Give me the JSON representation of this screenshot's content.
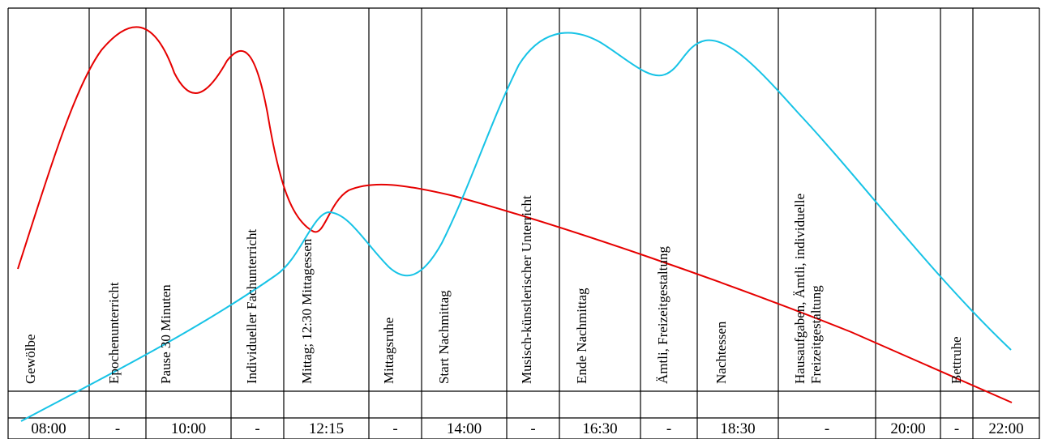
{
  "activities": [
    "Gewölbe",
    "Epochenunterricht",
    "Pause 30 Minuten",
    "Individueller Fachunterricht",
    "Mittag; 12:30 Mittagessen",
    "Mittagsruhe",
    "Start Nachmittag",
    "Musisch-künstlerischer Unterricht",
    "Ende Nachmittag",
    "Ämtli, Freizeitgestaltung",
    "Nachtessen",
    "Hausaufgaben, Ämtli, individuelle Freizeitgestaltung",
    "",
    "Bettruhe",
    ""
  ],
  "times": [
    "08:00",
    "-",
    "10:00",
    "-",
    "12:15",
    "-",
    "14:00",
    "-",
    "16:30",
    "-",
    "18:30",
    "-",
    "20:00",
    "-",
    "22:00"
  ],
  "curves": {
    "red_color": "#e60000",
    "cyan_color": "#17c3e6"
  }
}
